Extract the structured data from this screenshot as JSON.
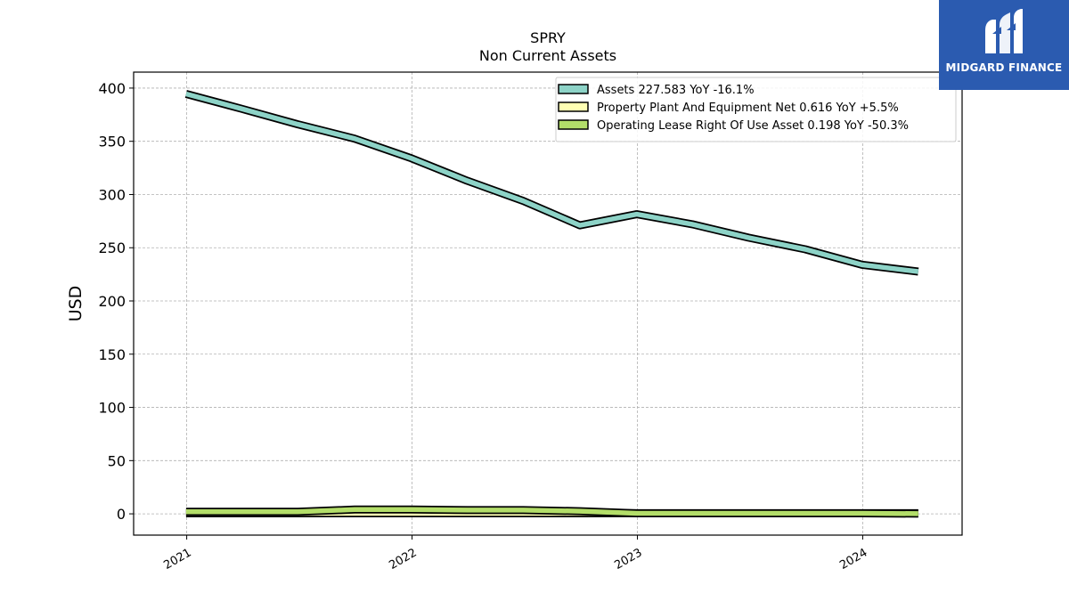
{
  "chart_data": {
    "type": "line",
    "title": "SPRY",
    "subtitle": "Non Current  Assets",
    "ylabel": "USD",
    "xlabel": "",
    "ylim": [
      -20,
      415
    ],
    "xlim": [
      "2020-10-07",
      "2024-06-10"
    ],
    "yticks": [
      0,
      50,
      100,
      150,
      200,
      250,
      300,
      350,
      400
    ],
    "xticks": [
      "2021",
      "2022",
      "2023",
      "2024"
    ],
    "xtick_dates": [
      "2021-01-01",
      "2022-01-01",
      "2023-01-01",
      "2024-01-01"
    ],
    "grid": true,
    "legend_position": "top-right",
    "x": [
      "2020-12-31",
      "2021-03-31",
      "2021-06-30",
      "2021-09-30",
      "2021-12-31",
      "2022-03-31",
      "2022-06-30",
      "2022-09-30",
      "2022-12-31",
      "2023-03-31",
      "2023-06-30",
      "2023-09-30",
      "2023-12-31",
      "2024-03-31"
    ],
    "series": [
      {
        "name": "Assets  227.583 YoY -16.1%",
        "color": "#8dd3c7",
        "values": [
          394.5,
          380.5,
          366.0,
          352.5,
          334.0,
          313.0,
          294.0,
          271.0,
          281.5,
          272.0,
          259.5,
          248.5,
          234.0,
          227.583
        ]
      },
      {
        "name": "Property Plant And Equipment Net  0.616 YoY +5.5%",
        "color": "#ffffb3",
        "values": [
          0.5,
          0.5,
          0.5,
          0.5,
          0.5,
          0.5,
          0.5,
          0.5,
          0.6,
          0.6,
          0.6,
          0.6,
          0.6,
          0.616
        ]
      },
      {
        "name": "Operating Lease Right Of Use Asset  0.198 YoY -50.3%",
        "color": "#b3de69",
        "values": [
          2.0,
          2.0,
          2.0,
          4.0,
          4.0,
          3.5,
          3.5,
          2.5,
          0.5,
          0.5,
          0.5,
          0.5,
          0.5,
          0.198
        ]
      }
    ]
  },
  "logo": {
    "text": "MIDGARD FINANCE",
    "bg": "#2b5bb0"
  }
}
